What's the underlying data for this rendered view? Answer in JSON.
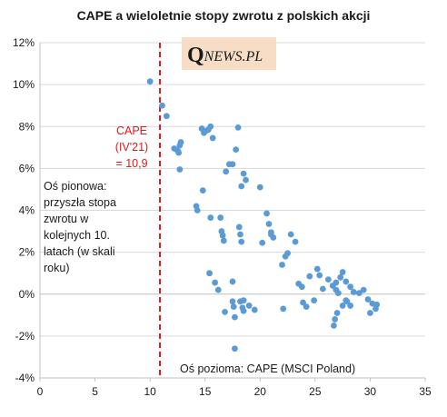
{
  "chart_data": {
    "type": "scatter",
    "title": "CAPE a wieloletnie stopy zwrotu z polskich akcji",
    "xlabel": "",
    "ylabel": "",
    "xlim": [
      0,
      35
    ],
    "ylim": [
      -4,
      12
    ],
    "x_ticks": [
      0,
      5,
      10,
      15,
      20,
      25,
      30,
      35
    ],
    "y_ticks": [
      -4,
      -2,
      0,
      2,
      4,
      6,
      8,
      10,
      12
    ],
    "y_tick_labels": [
      "-4%",
      "-2%",
      "0%",
      "2%",
      "4%",
      "6%",
      "8%",
      "10%",
      "12%"
    ],
    "grid": "horizontal",
    "reference_line": {
      "x": 10.9,
      "style": "dashed",
      "color": "#e3161b"
    },
    "annotations": {
      "cape_marker": [
        "CAPE",
        "(IV'21)",
        "= 10,9"
      ],
      "y_axis_note": [
        "Oś pionowa:",
        "przyszła stopa",
        "zwrotu w",
        "kolejnych 10.",
        "latach (w skali",
        "roku)"
      ],
      "x_axis_note": "Oś pozioma: CAPE (MSCI Poland)"
    },
    "points": [
      {
        "x": 10.0,
        "y": 10.15
      },
      {
        "x": 11.1,
        "y": 9.0
      },
      {
        "x": 11.5,
        "y": 8.5
      },
      {
        "x": 12.2,
        "y": 6.95
      },
      {
        "x": 12.5,
        "y": 6.85
      },
      {
        "x": 12.6,
        "y": 6.75
      },
      {
        "x": 12.7,
        "y": 7.1
      },
      {
        "x": 12.8,
        "y": 7.25
      },
      {
        "x": 12.7,
        "y": 5.95
      },
      {
        "x": 14.2,
        "y": 4.2
      },
      {
        "x": 14.3,
        "y": 4.0
      },
      {
        "x": 14.7,
        "y": 7.9
      },
      {
        "x": 14.9,
        "y": 7.7
      },
      {
        "x": 15.1,
        "y": 7.8
      },
      {
        "x": 15.3,
        "y": 7.85
      },
      {
        "x": 15.5,
        "y": 8.0
      },
      {
        "x": 15.7,
        "y": 7.45
      },
      {
        "x": 14.8,
        "y": 4.95
      },
      {
        "x": 15.5,
        "y": 3.65
      },
      {
        "x": 15.4,
        "y": 1.0
      },
      {
        "x": 15.9,
        "y": 0.55
      },
      {
        "x": 16.2,
        "y": 0.2
      },
      {
        "x": 16.4,
        "y": 3.65
      },
      {
        "x": 16.5,
        "y": 3.0
      },
      {
        "x": 16.6,
        "y": 2.8
      },
      {
        "x": 16.7,
        "y": 2.55
      },
      {
        "x": 16.8,
        "y": -0.85
      },
      {
        "x": 16.9,
        "y": 5.85
      },
      {
        "x": 17.2,
        "y": 6.2
      },
      {
        "x": 17.5,
        "y": 6.2
      },
      {
        "x": 17.8,
        "y": 6.9
      },
      {
        "x": 17.5,
        "y": 0.6
      },
      {
        "x": 17.5,
        "y": -0.35
      },
      {
        "x": 17.6,
        "y": -0.6
      },
      {
        "x": 17.7,
        "y": -1.1
      },
      {
        "x": 17.7,
        "y": -2.6
      },
      {
        "x": 18.0,
        "y": 7.95
      },
      {
        "x": 18.1,
        "y": 3.2
      },
      {
        "x": 18.2,
        "y": 2.85
      },
      {
        "x": 18.3,
        "y": 2.5
      },
      {
        "x": 18.2,
        "y": -0.35
      },
      {
        "x": 18.4,
        "y": -0.65
      },
      {
        "x": 18.5,
        "y": -0.3
      },
      {
        "x": 18.5,
        "y": -0.8
      },
      {
        "x": 18.3,
        "y": 5.15
      },
      {
        "x": 18.5,
        "y": 5.75
      },
      {
        "x": 18.7,
        "y": 5.45
      },
      {
        "x": 19.0,
        "y": -0.55
      },
      {
        "x": 19.5,
        "y": -0.75
      },
      {
        "x": 20.0,
        "y": 5.1
      },
      {
        "x": 20.2,
        "y": 2.45
      },
      {
        "x": 20.6,
        "y": 3.85
      },
      {
        "x": 20.8,
        "y": 3.35
      },
      {
        "x": 21.0,
        "y": 2.95
      },
      {
        "x": 21.0,
        "y": 2.85
      },
      {
        "x": 21.2,
        "y": 2.7
      },
      {
        "x": 22.0,
        "y": 1.4
      },
      {
        "x": 22.1,
        "y": -0.7
      },
      {
        "x": 22.3,
        "y": 1.8
      },
      {
        "x": 22.5,
        "y": 1.95
      },
      {
        "x": 22.8,
        "y": 2.85
      },
      {
        "x": 23.2,
        "y": 2.5
      },
      {
        "x": 23.5,
        "y": 0.5
      },
      {
        "x": 23.8,
        "y": 0.35
      },
      {
        "x": 23.9,
        "y": -0.4
      },
      {
        "x": 24.2,
        "y": -0.6
      },
      {
        "x": 24.5,
        "y": 0.85
      },
      {
        "x": 24.9,
        "y": -0.3
      },
      {
        "x": 25.2,
        "y": 1.2
      },
      {
        "x": 25.4,
        "y": 0.9
      },
      {
        "x": 25.7,
        "y": 0.25
      },
      {
        "x": 26.2,
        "y": 0.7
      },
      {
        "x": 26.6,
        "y": 0.4
      },
      {
        "x": 26.9,
        "y": 0.55
      },
      {
        "x": 26.9,
        "y": 0.2
      },
      {
        "x": 27.1,
        "y": 0.05
      },
      {
        "x": 27.3,
        "y": 0.8
      },
      {
        "x": 27.5,
        "y": 1.05
      },
      {
        "x": 27.8,
        "y": 0.6
      },
      {
        "x": 27.9,
        "y": -0.35
      },
      {
        "x": 28.2,
        "y": -0.55
      },
      {
        "x": 26.7,
        "y": -1.5
      },
      {
        "x": 26.8,
        "y": -1.2
      },
      {
        "x": 27.0,
        "y": -0.9
      },
      {
        "x": 27.5,
        "y": -0.55
      },
      {
        "x": 27.8,
        "y": -0.3
      },
      {
        "x": 28.2,
        "y": 0.35
      },
      {
        "x": 28.5,
        "y": 0.1
      },
      {
        "x": 29.0,
        "y": 0.05
      },
      {
        "x": 29.4,
        "y": 0.2
      },
      {
        "x": 29.8,
        "y": -0.25
      },
      {
        "x": 30.0,
        "y": -0.9
      },
      {
        "x": 30.2,
        "y": -0.45
      },
      {
        "x": 30.5,
        "y": -0.7
      },
      {
        "x": 30.6,
        "y": -0.5
      }
    ]
  },
  "logo": {
    "text": "QNEWS.PL",
    "letter": "Q",
    "rest": "NEWS.PL",
    "background": "#f7dcc6"
  },
  "colors": {
    "point": "#5b9bd5",
    "reference_line": "#e3161b",
    "annotation_red": "#e3161b",
    "grid": "#d9d9d9",
    "axis": "#bfbfbf",
    "text": "#1a1a1a"
  }
}
